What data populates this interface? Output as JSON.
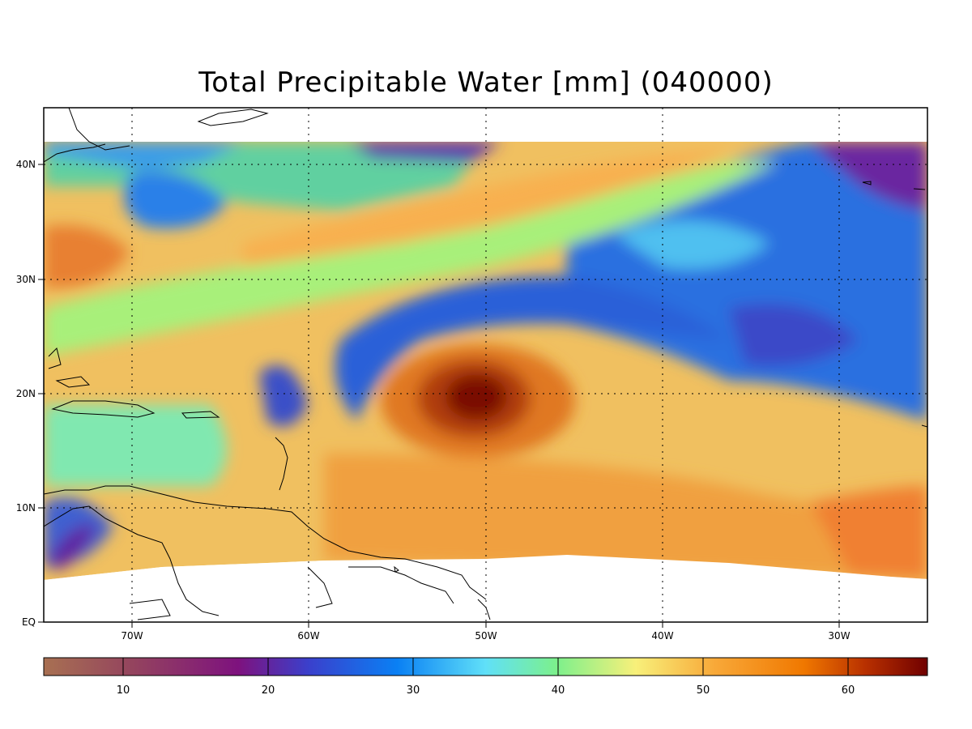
{
  "title": "Total Precipitable Water [mm]  (040000)",
  "map": {
    "lat_labels": [
      {
        "value": 40,
        "text": "40N"
      },
      {
        "value": 30,
        "text": "30N"
      },
      {
        "value": 20,
        "text": "20N"
      },
      {
        "value": 10,
        "text": "10N"
      },
      {
        "value": 0,
        "text": "EQ"
      }
    ],
    "lon_labels": [
      {
        "value": -70,
        "text": "70W"
      },
      {
        "value": -60,
        "text": "60W"
      },
      {
        "value": -50,
        "text": "50W"
      },
      {
        "value": -40,
        "text": "40W"
      },
      {
        "value": -30,
        "text": "30W"
      }
    ],
    "lon_range": [
      -75,
      -25
    ],
    "lat_range": [
      0,
      45
    ],
    "gridlines": "dotted"
  },
  "colorbar": {
    "range": [
      5,
      66
    ],
    "ticks": [
      {
        "value": 10,
        "text": "10"
      },
      {
        "value": 20,
        "text": "20"
      },
      {
        "value": 30,
        "text": "30"
      },
      {
        "value": 40,
        "text": "40"
      },
      {
        "value": 50,
        "text": "50"
      },
      {
        "value": 60,
        "text": "60"
      }
    ],
    "colors": [
      "#a0684e",
      "#8c3c5a",
      "#7a1a82",
      "#3a3ac8",
      "#0a7cf0",
      "#5ad0f8",
      "#7af0a0",
      "#f8f07a",
      "#f8a030",
      "#e06000",
      "#7a0000"
    ]
  }
}
